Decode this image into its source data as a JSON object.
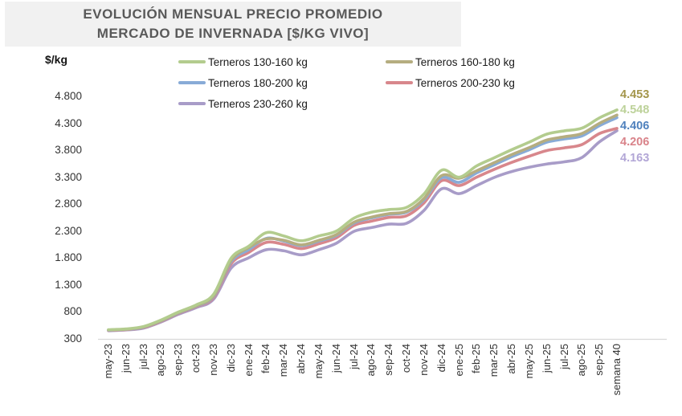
{
  "title": {
    "line1": "EVOLUCIÓN MENSUAL PRECIO PROMEDIO",
    "line2": "MERCADO DE INVERNADA [$/KG VIVO]"
  },
  "y_axis_label": "$/kg",
  "legend": {
    "items": [
      {
        "label": "Terneros 130-160 kg",
        "color": "#b3cc8e"
      },
      {
        "label": "Terneros 160-180 kg",
        "color": "#b5ad80"
      },
      {
        "label": "Terneros 180-200 kg",
        "color": "#88abd7"
      },
      {
        "label": "Terneros 200-230 kg",
        "color": "#d8878c"
      },
      {
        "label": "Terneros 230-260 kg",
        "color": "#a89cc8"
      }
    ]
  },
  "end_labels": [
    {
      "value": "4.453",
      "color": "#a4964b"
    },
    {
      "value": "4.548",
      "color": "#bdd29a"
    },
    {
      "value": "4.406",
      "color": "#4f81bd"
    },
    {
      "value": "4.206",
      "color": "#d9838a"
    },
    {
      "value": "4.163",
      "color": "#b2a6d6"
    }
  ],
  "chart_data": {
    "type": "line",
    "title": "EVOLUCIÓN MENSUAL PRECIO PROMEDIO MERCADO DE INVERNADA [$/KG VIVO]",
    "xlabel": "",
    "ylabel": "$/kg",
    "ylim": [
      300,
      4800
    ],
    "grid": false,
    "legend_position": "top",
    "yticks": [
      {
        "label": "4.800",
        "value": 4800
      },
      {
        "label": "4.300",
        "value": 4300
      },
      {
        "label": "3.800",
        "value": 3800
      },
      {
        "label": "3.300",
        "value": 3300
      },
      {
        "label": "2.800",
        "value": 2800
      },
      {
        "label": "2.300",
        "value": 2300
      },
      {
        "label": "1.800",
        "value": 1800
      },
      {
        "label": "1.300",
        "value": 1300
      },
      {
        "label": "800",
        "value": 800
      },
      {
        "label": "300",
        "value": 300
      }
    ],
    "categories": [
      "may-23",
      "jun-23",
      "jul-23",
      "ago-23",
      "sep-23",
      "oct-23",
      "nov-23",
      "dic-23",
      "ene-24",
      "feb-24",
      "mar-24",
      "abr-24",
      "may-24",
      "jun-24",
      "jul-24",
      "ago-24",
      "sep-24",
      "oct-24",
      "nov-24",
      "dic-24",
      "ene-25",
      "feb-25",
      "mar-25",
      "abr-25",
      "may-25",
      "jun-25",
      "jul-25",
      "ago-25",
      "sep-25",
      "semana 40"
    ],
    "series": [
      {
        "name": "Terneros 130-160 kg",
        "color": "#b3cc8e",
        "end_value": 4548,
        "values": [
          470,
          485,
          530,
          650,
          800,
          930,
          1130,
          1800,
          2020,
          2270,
          2210,
          2120,
          2210,
          2300,
          2540,
          2650,
          2700,
          2740,
          2990,
          3430,
          3300,
          3510,
          3660,
          3810,
          3950,
          4100,
          4160,
          4210,
          4400,
          4548
        ]
      },
      {
        "name": "Terneros 160-180 kg",
        "color": "#b5ad80",
        "end_value": 4453,
        "values": [
          466,
          480,
          522,
          640,
          790,
          915,
          1105,
          1760,
          1995,
          2155,
          2130,
          2045,
          2130,
          2235,
          2465,
          2560,
          2625,
          2665,
          2905,
          3330,
          3280,
          3420,
          3570,
          3720,
          3850,
          3990,
          4050,
          4110,
          4300,
          4453
        ]
      },
      {
        "name": "Terneros 180-200 kg",
        "color": "#88abd7",
        "end_value": 4406,
        "values": [
          463,
          477,
          517,
          634,
          783,
          908,
          1090,
          1735,
          1955,
          2165,
          2115,
          2030,
          2115,
          2220,
          2450,
          2545,
          2612,
          2652,
          2880,
          3290,
          3205,
          3380,
          3530,
          3680,
          3810,
          3950,
          4010,
          4065,
          4255,
          4406
        ]
      },
      {
        "name": "Terneros 200-230 kg",
        "color": "#d8878c",
        "end_value": 4206,
        "values": [
          458,
          472,
          510,
          626,
          774,
          898,
          1068,
          1695,
          1905,
          2090,
          2055,
          1975,
          2065,
          2175,
          2405,
          2485,
          2555,
          2585,
          2825,
          3235,
          3145,
          3300,
          3445,
          3575,
          3690,
          3795,
          3845,
          3905,
          4110,
          4206
        ]
      },
      {
        "name": "Terneros 230-260 kg",
        "color": "#a89cc8",
        "end_value": 4163,
        "values": [
          452,
          466,
          500,
          614,
          758,
          880,
          1038,
          1615,
          1805,
          1955,
          1935,
          1860,
          1955,
          2075,
          2295,
          2365,
          2430,
          2445,
          2685,
          3085,
          2995,
          3145,
          3295,
          3405,
          3485,
          3545,
          3585,
          3665,
          3955,
          4163
        ]
      }
    ]
  }
}
